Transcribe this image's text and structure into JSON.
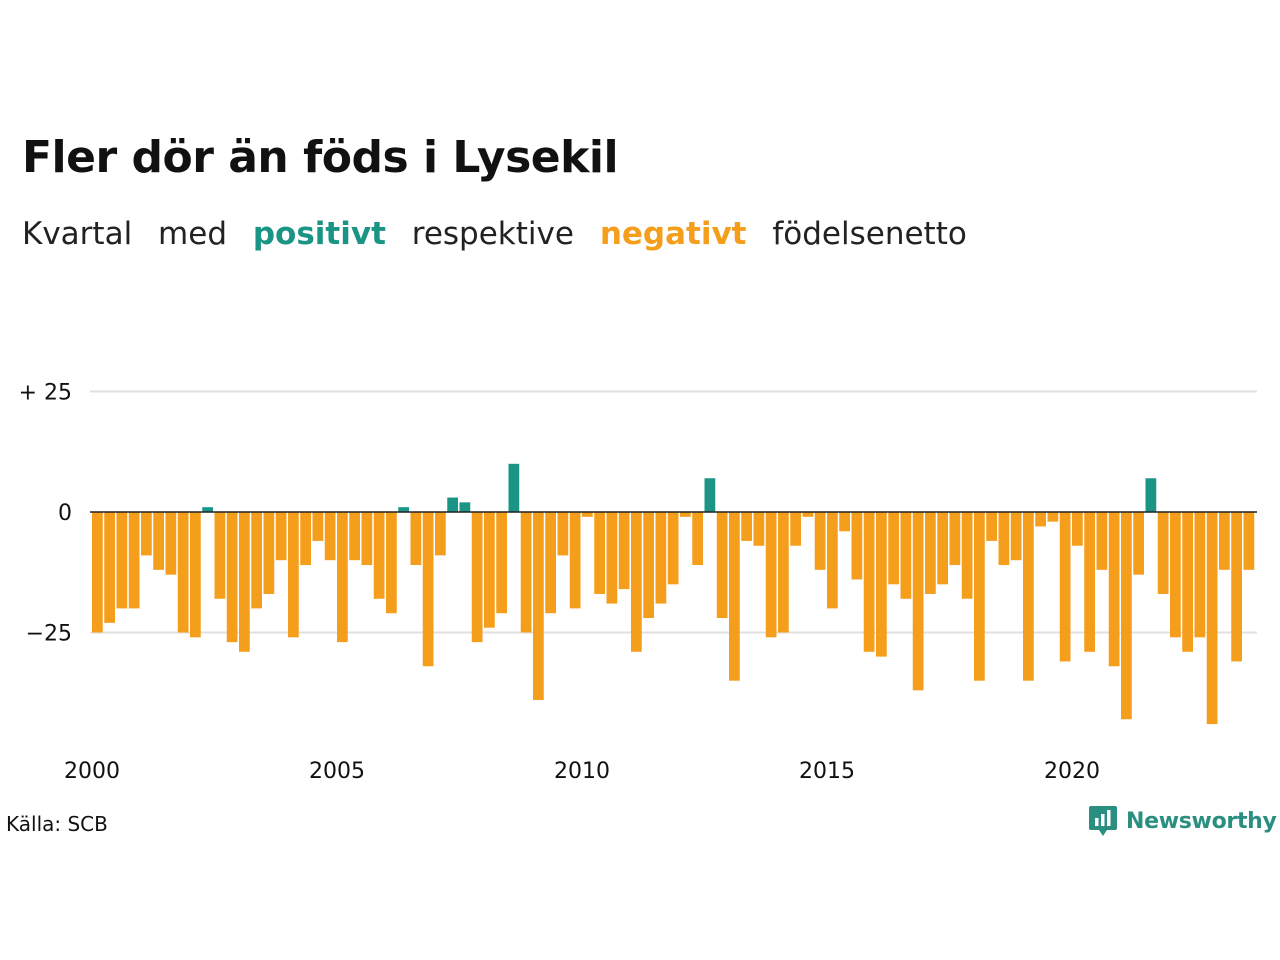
{
  "title": "Fler dör än föds i Lysekil",
  "subtitle": {
    "part1": "Kvartal",
    "part2": "med",
    "positive": "positivt",
    "part3": "respektive",
    "negative": "negativt",
    "part4": "födelsenetto"
  },
  "colors": {
    "positive": "#1a9585",
    "negative": "#f59e1c",
    "grid": "#e0e0e0",
    "axis": "#222222"
  },
  "source": "Källa: SCB",
  "logo": {
    "text": "Newsworthy",
    "icon": "newsworthy-chart-icon"
  },
  "chart_data": {
    "type": "bar",
    "x_start": 2000,
    "interval": "quarter",
    "ylim": [
      -44,
      25
    ],
    "yticks": [
      25,
      0,
      -25
    ],
    "ytick_labels": [
      "+ 25",
      "0",
      "−25"
    ],
    "xticks": [
      "2000",
      "2005",
      "2010",
      "2015",
      "2020"
    ],
    "grid": true,
    "values": [
      -25,
      -23,
      -20,
      -20,
      -9,
      -12,
      -13,
      -25,
      -26,
      1,
      -18,
      -27,
      -29,
      -20,
      -17,
      -10,
      -26,
      -11,
      -6,
      -10,
      -27,
      -10,
      -11,
      -18,
      -21,
      1,
      -11,
      -32,
      -9,
      3,
      2,
      -27,
      -24,
      -21,
      10,
      -25,
      -39,
      -21,
      -9,
      -20,
      -1,
      -17,
      -19,
      -16,
      -29,
      -22,
      -19,
      -15,
      -1,
      -11,
      7,
      -22,
      -35,
      -6,
      -7,
      -26,
      -25,
      -7,
      -1,
      -12,
      -20,
      -4,
      -14,
      -29,
      -30,
      -15,
      -18,
      -37,
      -17,
      -15,
      -11,
      -18,
      -35,
      -6,
      -11,
      -10,
      -35,
      -3,
      -2,
      -31,
      -7,
      -29,
      -12,
      -32,
      -43,
      -13,
      7,
      -17,
      -26,
      -29,
      -26,
      -44,
      -12,
      -31,
      -12
    ]
  }
}
